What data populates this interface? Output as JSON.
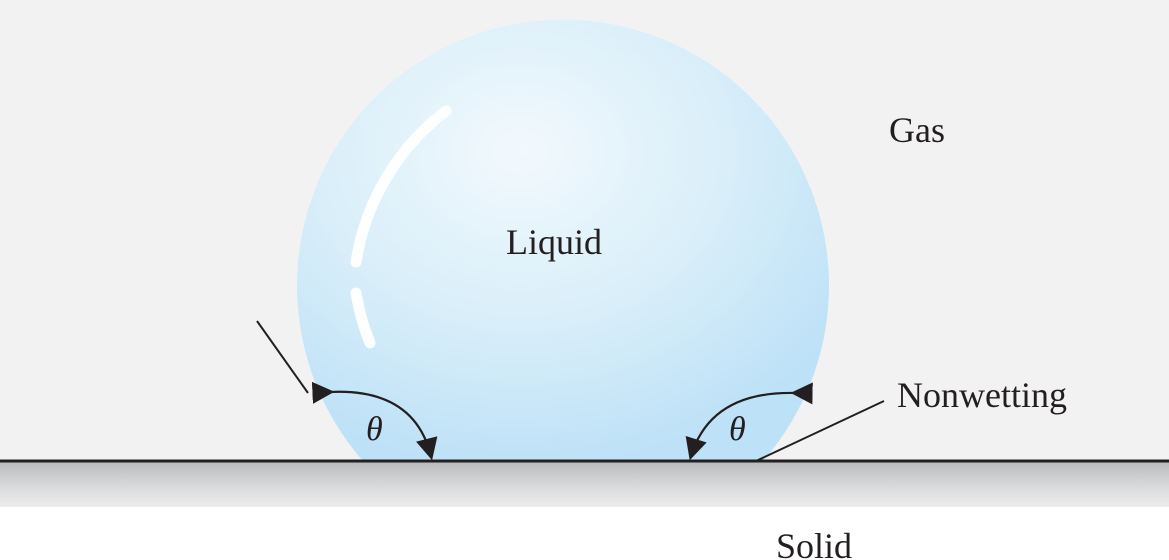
{
  "figure": {
    "labels": {
      "gas": "Gas",
      "liquid": "Liquid",
      "nonwetting": "Nonwetting",
      "solid": "Solid",
      "theta_left": "θ",
      "theta_right": "θ"
    },
    "colors": {
      "gas_background": "#f3f2f2",
      "liquid_light": "#f2f9fd",
      "liquid_mid": "#d8eef9",
      "liquid_edge": "#bde1f7",
      "solid_surface_light": "#ececed",
      "solid_surface_dark": "#b8b9bb",
      "line_color": "#231f20",
      "label_color": "#231f20",
      "highlight": "#ffffff"
    }
  }
}
